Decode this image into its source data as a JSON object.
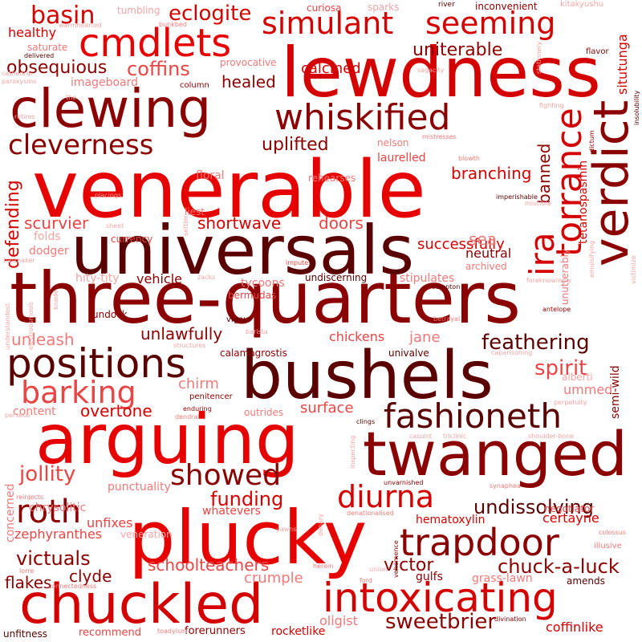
{
  "palette": {
    "darkest": "#5a0000",
    "dark": "#8b0000",
    "deep": "#a00000",
    "red": "#d40000",
    "bright": "#e60000",
    "medium": "#e84545",
    "light": "#f07a7a",
    "pale": "#f3a5a5",
    "palest": "#f7c4c4"
  },
  "words": [
    {
      "text": "venerable"
    },
    {
      "text": "three-quarters"
    },
    {
      "text": "universals"
    },
    {
      "text": "lewdness"
    },
    {
      "text": "bushels"
    },
    {
      "text": "arguing"
    },
    {
      "text": "plucky"
    },
    {
      "text": "clewing"
    },
    {
      "text": "twanged"
    },
    {
      "text": "chuckled"
    },
    {
      "text": "cmdlets"
    },
    {
      "text": "verdict"
    },
    {
      "text": "intoxicating"
    },
    {
      "text": "positions"
    },
    {
      "text": "fashioneth"
    },
    {
      "text": "trapdoor"
    },
    {
      "text": "whiskified"
    },
    {
      "text": "simulant"
    },
    {
      "text": "seeming"
    },
    {
      "text": "torrance"
    },
    {
      "text": "ira"
    },
    {
      "text": "cleverness"
    },
    {
      "text": "barking"
    },
    {
      "text": "roth"
    },
    {
      "text": "diurna"
    },
    {
      "text": "showed"
    },
    {
      "text": "basin"
    },
    {
      "text": "sweetbrier"
    },
    {
      "text": "chuck-a-luck"
    },
    {
      "text": "eclogite"
    },
    {
      "text": "feathering"
    },
    {
      "text": "undissolving"
    },
    {
      "text": "coffins"
    },
    {
      "text": "uniterable"
    },
    {
      "text": "calcined"
    },
    {
      "text": "obsequious"
    },
    {
      "text": "uplifted"
    },
    {
      "text": "jollity"
    },
    {
      "text": "spirit"
    },
    {
      "text": "defending"
    },
    {
      "text": "situtunga"
    },
    {
      "text": "victuals"
    },
    {
      "text": "funding"
    },
    {
      "text": "banned"
    },
    {
      "text": "healed"
    },
    {
      "text": "branching"
    },
    {
      "text": "shortwave"
    },
    {
      "text": "scurvier"
    },
    {
      "text": "successfully"
    },
    {
      "text": "doors"
    },
    {
      "text": "unlawfully"
    },
    {
      "text": "unleash"
    },
    {
      "text": "victor"
    },
    {
      "text": "schoolteachers"
    },
    {
      "text": "hematoxylin"
    },
    {
      "text": "certayne"
    },
    {
      "text": "sea"
    },
    {
      "text": "surface"
    },
    {
      "text": "clyde"
    },
    {
      "text": "crumple"
    },
    {
      "text": "flakes"
    },
    {
      "text": "overtone"
    },
    {
      "text": "chirm"
    },
    {
      "text": "jane"
    },
    {
      "text": "chickens"
    },
    {
      "text": "unfixes"
    },
    {
      "text": "zephyranthes"
    },
    {
      "text": "oligist"
    },
    {
      "text": "coffinlike"
    },
    {
      "text": "rocketlike"
    },
    {
      "text": "forerunners"
    },
    {
      "text": "recommend"
    },
    {
      "text": "unfitness"
    },
    {
      "text": "healthy"
    },
    {
      "text": "tumbling"
    },
    {
      "text": "curiosa"
    },
    {
      "text": "sparks"
    },
    {
      "text": "river"
    },
    {
      "text": "inconvenient"
    },
    {
      "text": "kitakyushu"
    },
    {
      "text": "saturate"
    },
    {
      "text": "imageboard"
    },
    {
      "text": "nelson"
    },
    {
      "text": "laurelled"
    },
    {
      "text": "neutral"
    },
    {
      "text": "archived"
    },
    {
      "text": "stipulates"
    },
    {
      "text": "tycoons"
    },
    {
      "text": "bermudas"
    },
    {
      "text": "vehicle"
    },
    {
      "text": "hity-tity"
    },
    {
      "text": "undiscerning"
    },
    {
      "text": "currency"
    },
    {
      "text": "liest"
    },
    {
      "text": "folds"
    },
    {
      "text": "dodger"
    },
    {
      "text": "content"
    },
    {
      "text": "undock"
    },
    {
      "text": "calamagrostis"
    },
    {
      "text": "univalve"
    },
    {
      "text": "ummed"
    },
    {
      "text": "alberti"
    },
    {
      "text": "punctuality"
    },
    {
      "text": "chrysolitic"
    },
    {
      "text": "whatevers"
    },
    {
      "text": "veneration"
    },
    {
      "text": "negotiator"
    },
    {
      "text": "gulfs"
    },
    {
      "text": "grass-lawn"
    },
    {
      "text": "amends"
    },
    {
      "text": "concerned"
    },
    {
      "text": "tetanospasmin"
    },
    {
      "text": "semi-wild"
    },
    {
      "text": "unutterably"
    },
    {
      "text": "floral"
    },
    {
      "text": "rehearses"
    },
    {
      "text": "provocative"
    },
    {
      "text": "column"
    },
    {
      "text": "cathedral"
    },
    {
      "text": "delivered"
    },
    {
      "text": "the"
    },
    {
      "text": "retires"
    },
    {
      "text": "paroxysms"
    },
    {
      "text": "bunkbed"
    },
    {
      "text": "warmhearted"
    },
    {
      "text": "sagacity"
    },
    {
      "text": "stationery"
    },
    {
      "text": "flavor"
    },
    {
      "text": "fighting"
    },
    {
      "text": "insolubility"
    },
    {
      "text": "dictum"
    },
    {
      "text": "mistresses"
    },
    {
      "text": "blowth"
    },
    {
      "text": "imperishable"
    },
    {
      "text": "miscible"
    },
    {
      "text": "placings"
    },
    {
      "text": "sheet"
    },
    {
      "text": "settler"
    },
    {
      "text": "ballmaker"
    },
    {
      "text": "impute"
    },
    {
      "text": "zacks"
    },
    {
      "text": "emulsifying"
    },
    {
      "text": "victimize"
    },
    {
      "text": "foreknowingly"
    },
    {
      "text": "compton"
    },
    {
      "text": "antelope"
    },
    {
      "text": "betrayal"
    },
    {
      "text": "vigour"
    },
    {
      "text": "barista"
    },
    {
      "text": "structures"
    },
    {
      "text": "knede"
    },
    {
      "text": "electroosmosis"
    },
    {
      "text": "understandest"
    },
    {
      "text": "caparisoning"
    },
    {
      "text": "perpetuity"
    },
    {
      "text": "penitencer"
    },
    {
      "text": "enduring"
    },
    {
      "text": "dendral"
    },
    {
      "text": "outrides"
    },
    {
      "text": "perseus"
    },
    {
      "text": "clings"
    },
    {
      "text": "casuist"
    },
    {
      "text": "triclinic"
    },
    {
      "text": "shoulder-bone"
    },
    {
      "text": "inspecting"
    },
    {
      "text": "unvarnished"
    },
    {
      "text": "synaphea"
    },
    {
      "text": "reinjects"
    },
    {
      "text": "denary"
    },
    {
      "text": "denationalised"
    },
    {
      "text": "yawns"
    },
    {
      "text": "colossus"
    },
    {
      "text": "illusive"
    },
    {
      "text": "vehemence"
    },
    {
      "text": "herein"
    },
    {
      "text": "union"
    },
    {
      "text": "ford"
    },
    {
      "text": "lorre"
    },
    {
      "text": "connectedness"
    },
    {
      "text": "toadyism"
    },
    {
      "text": "divination"
    },
    {
      "text": "stationery-dup"
    }
  ]
}
